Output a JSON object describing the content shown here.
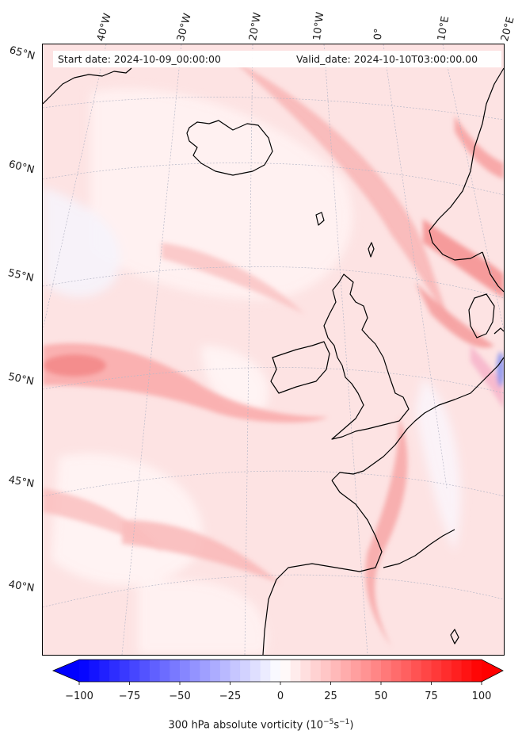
{
  "header": {
    "start_date": "Start date: 2024-10-09_00:00:00",
    "valid_date": "Valid_date: 2024-10-10T03:00:00.00"
  },
  "longitude_labels": [
    "40°W",
    "30°W",
    "20°W",
    "10°W",
    "0°",
    "10°E",
    "20°E"
  ],
  "latitude_labels": [
    "65°N",
    "60°N",
    "55°N",
    "50°N",
    "45°N",
    "40°N"
  ],
  "colorbar": {
    "ticks": [
      "−100",
      "−75",
      "−50",
      "−25",
      "0",
      "25",
      "50",
      "75",
      "100"
    ],
    "label": "300 hPa absolute vorticity (10",
    "label_exp1": "−5",
    "label_mid": "s",
    "label_exp2": "−1",
    "label_end": ")",
    "min": -100,
    "max": 100,
    "low_color": "#0000ff",
    "high_color": "#ff0000",
    "extend": "both"
  },
  "colors": {
    "background_field": "#fde3e3",
    "coastline": "#000000",
    "gridline": "#b8b8c8"
  }
}
